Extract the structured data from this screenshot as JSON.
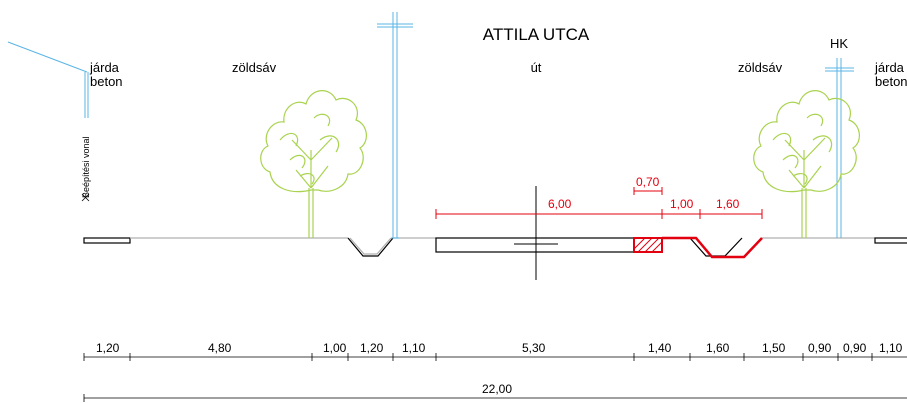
{
  "title": "ATTILA UTCA",
  "labels": {
    "left_sidewalk_1": "járda",
    "left_sidewalk_2": "beton",
    "left_green": "zöldsáv",
    "road": "út",
    "right_green": "zöldsáv",
    "right_sidewalk_1": "járda",
    "right_sidewalk_2": "beton",
    "hk": "HK",
    "building_line": "Beépítési vonal"
  },
  "red_dimensions": {
    "lane": "6,00",
    "small": "0,70",
    "gap": "1,00",
    "ditch": "1,60"
  },
  "bottom_dimensions": [
    "1,20",
    "4,80",
    "1,00",
    "1,20",
    "1,10",
    "5,30",
    "1,40",
    "1,60",
    "1,50",
    "0,90",
    "0,90",
    "1,10"
  ],
  "total_width": "22,00",
  "colors": {
    "proposed": "#e3000f",
    "utility": "#5ab4e6",
    "tree": "#a9d34f",
    "ground": "#7a7a7a"
  }
}
